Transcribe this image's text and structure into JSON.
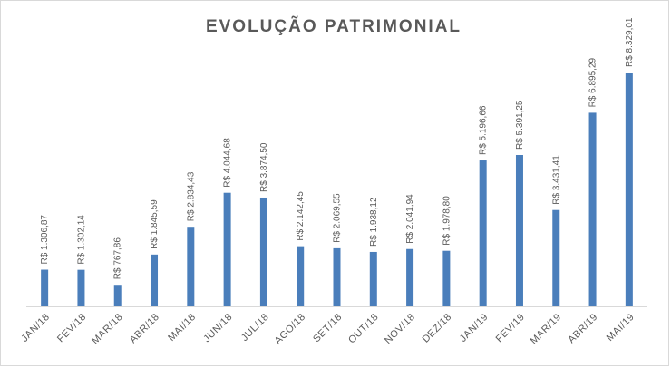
{
  "chart_data": {
    "type": "bar",
    "title": "EVOLUÇÃO PATRIMONIAL",
    "categories": [
      "JAN/18",
      "FEV/18",
      "MAR/18",
      "ABR/18",
      "MAI/18",
      "JUN/18",
      "JUL/18",
      "AGO/18",
      "SET/18",
      "OUT/18",
      "NOV/18",
      "DEZ/18",
      "JAN/19",
      "FEV/19",
      "MAR/19",
      "ABR/19",
      "MAI/19"
    ],
    "values": [
      1306.87,
      1302.14,
      767.86,
      1845.59,
      2834.43,
      4044.68,
      3874.5,
      2142.45,
      2069.55,
      1938.12,
      2041.94,
      1978.8,
      5196.66,
      5391.25,
      3431.41,
      6895.29,
      8329.01
    ],
    "value_labels": [
      "R$ 1.306,87",
      "R$ 1.302,14",
      "R$ 767,86",
      "R$ 1.845,59",
      "R$ 2.834,43",
      "R$ 4.044,68",
      "R$ 3.874,50",
      "R$ 2.142,45",
      "R$ 2.069,55",
      "R$ 1.938,12",
      "R$ 2.041,94",
      "R$ 1.978,80",
      "R$ 5.196,66",
      "R$ 5.391,25",
      "R$ 3.431,41",
      "R$ 6.895,29",
      "R$ 8.329,01"
    ],
    "color": "#4a7ebb"
  }
}
